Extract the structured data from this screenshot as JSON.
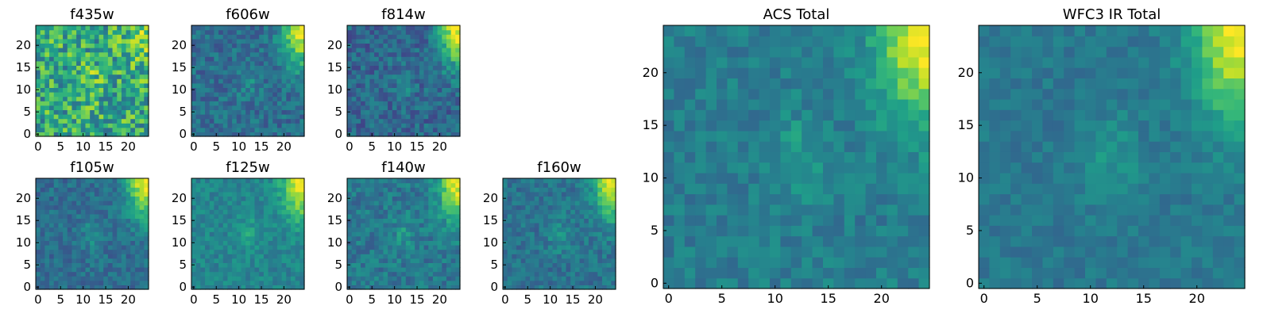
{
  "colormap": {
    "name": "viridis",
    "stops": [
      "#440154",
      "#482878",
      "#3e4989",
      "#31688e",
      "#26828e",
      "#1f9e89",
      "#35b779",
      "#6ece58",
      "#b5de2b",
      "#fde725"
    ]
  },
  "chart_data": [
    {
      "type": "heatmap",
      "title": "f435w",
      "grid": false,
      "size": 25,
      "xlim": [
        0,
        24
      ],
      "ylim": [
        0,
        24
      ],
      "xticks": [
        "0",
        "5",
        "10",
        "15",
        "20"
      ],
      "yticks": [
        "0",
        "5",
        "10",
        "15",
        "20"
      ],
      "pattern": {
        "base": 0.6,
        "noise": 0.26,
        "corner": 0.25
      }
    },
    {
      "type": "heatmap",
      "title": "f606w",
      "grid": false,
      "size": 25,
      "xlim": [
        0,
        24
      ],
      "ylim": [
        0,
        24
      ],
      "xticks": [
        "0",
        "5",
        "10",
        "15",
        "20"
      ],
      "yticks": [
        "0",
        "5",
        "10",
        "15",
        "20"
      ],
      "pattern": {
        "base": 0.36,
        "noise": 0.12,
        "corner": 0.62
      }
    },
    {
      "type": "heatmap",
      "title": "f814w",
      "grid": false,
      "size": 25,
      "xlim": [
        0,
        24
      ],
      "ylim": [
        0,
        24
      ],
      "xticks": [
        "0",
        "5",
        "10",
        "15",
        "20"
      ],
      "yticks": [
        "0",
        "5",
        "10",
        "15",
        "20"
      ],
      "pattern": {
        "base": 0.33,
        "noise": 0.13,
        "corner": 0.65
      }
    },
    {
      "type": "heatmap",
      "title": "f105w",
      "grid": false,
      "size": 25,
      "xlim": [
        0,
        24
      ],
      "ylim": [
        0,
        24
      ],
      "xticks": [
        "0",
        "5",
        "10",
        "15",
        "20"
      ],
      "yticks": [
        "0",
        "5",
        "10",
        "15",
        "20"
      ],
      "pattern": {
        "base": 0.36,
        "noise": 0.1,
        "corner": 0.62
      }
    },
    {
      "type": "heatmap",
      "title": "f125w",
      "grid": false,
      "size": 25,
      "xlim": [
        0,
        24
      ],
      "ylim": [
        0,
        24
      ],
      "xticks": [
        "0",
        "5",
        "10",
        "15",
        "20"
      ],
      "yticks": [
        "0",
        "5",
        "10",
        "15",
        "20"
      ],
      "pattern": {
        "base": 0.45,
        "noise": 0.09,
        "corner": 0.55
      }
    },
    {
      "type": "heatmap",
      "title": "f140w",
      "grid": false,
      "size": 25,
      "xlim": [
        0,
        24
      ],
      "ylim": [
        0,
        24
      ],
      "xticks": [
        "0",
        "5",
        "10",
        "15",
        "20"
      ],
      "yticks": [
        "0",
        "5",
        "10",
        "15",
        "20"
      ],
      "pattern": {
        "base": 0.4,
        "noise": 0.11,
        "corner": 0.58
      }
    },
    {
      "type": "heatmap",
      "title": "f160w",
      "grid": false,
      "size": 25,
      "xlim": [
        0,
        24
      ],
      "ylim": [
        0,
        24
      ],
      "xticks": [
        "0",
        "5",
        "10",
        "15",
        "20"
      ],
      "yticks": [
        "0",
        "5",
        "10",
        "15",
        "20"
      ],
      "pattern": {
        "base": 0.38,
        "noise": 0.1,
        "corner": 0.6
      }
    },
    {
      "type": "heatmap",
      "title": "ACS Total",
      "grid": false,
      "size": 25,
      "xlim": [
        0,
        24
      ],
      "ylim": [
        0,
        24
      ],
      "xticks": [
        "0",
        "5",
        "10",
        "15",
        "20"
      ],
      "yticks": [
        "0",
        "5",
        "10",
        "15",
        "20"
      ],
      "pattern": {
        "base": 0.42,
        "noise": 0.09,
        "corner": 0.58
      }
    },
    {
      "type": "heatmap",
      "title": "WFC3 IR Total",
      "grid": false,
      "size": 25,
      "xlim": [
        0,
        24
      ],
      "ylim": [
        0,
        24
      ],
      "xticks": [
        "0",
        "5",
        "10",
        "15",
        "20"
      ],
      "yticks": [
        "0",
        "5",
        "10",
        "15",
        "20"
      ],
      "pattern": {
        "base": 0.4,
        "noise": 0.07,
        "corner": 0.6
      }
    }
  ]
}
